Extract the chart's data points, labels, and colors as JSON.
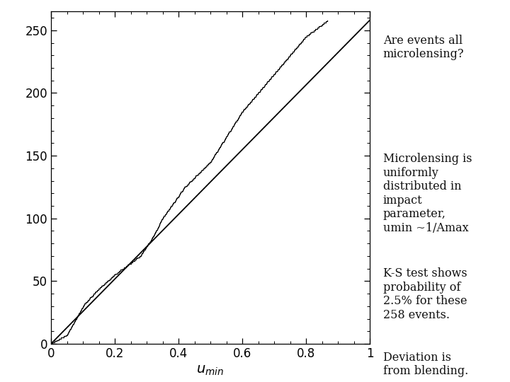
{
  "n_events": 258,
  "umin_max": 1.0,
  "xlim": [
    0,
    1
  ],
  "ylim": [
    0,
    265
  ],
  "yticks": [
    0,
    50,
    100,
    150,
    200,
    250
  ],
  "xticks": [
    0,
    0.2,
    0.4,
    0.6,
    0.8,
    1.0
  ],
  "xlabel": "u_{min}",
  "right_panel_color": "#3333bb",
  "text_color": "#111111",
  "annotations": [
    "Are events all\nmicrolensing?",
    "Microlensing is\nuniformly\ndistributed in\nimpact\nparameter,\numin ~1/Amax",
    "K-S test shows\nprobability of\n2.5% for these\n258 events.",
    "Deviation is\nfrom blending."
  ],
  "line_color": "#000000",
  "fig_width": 7.2,
  "fig_height": 5.4,
  "dpi": 100
}
